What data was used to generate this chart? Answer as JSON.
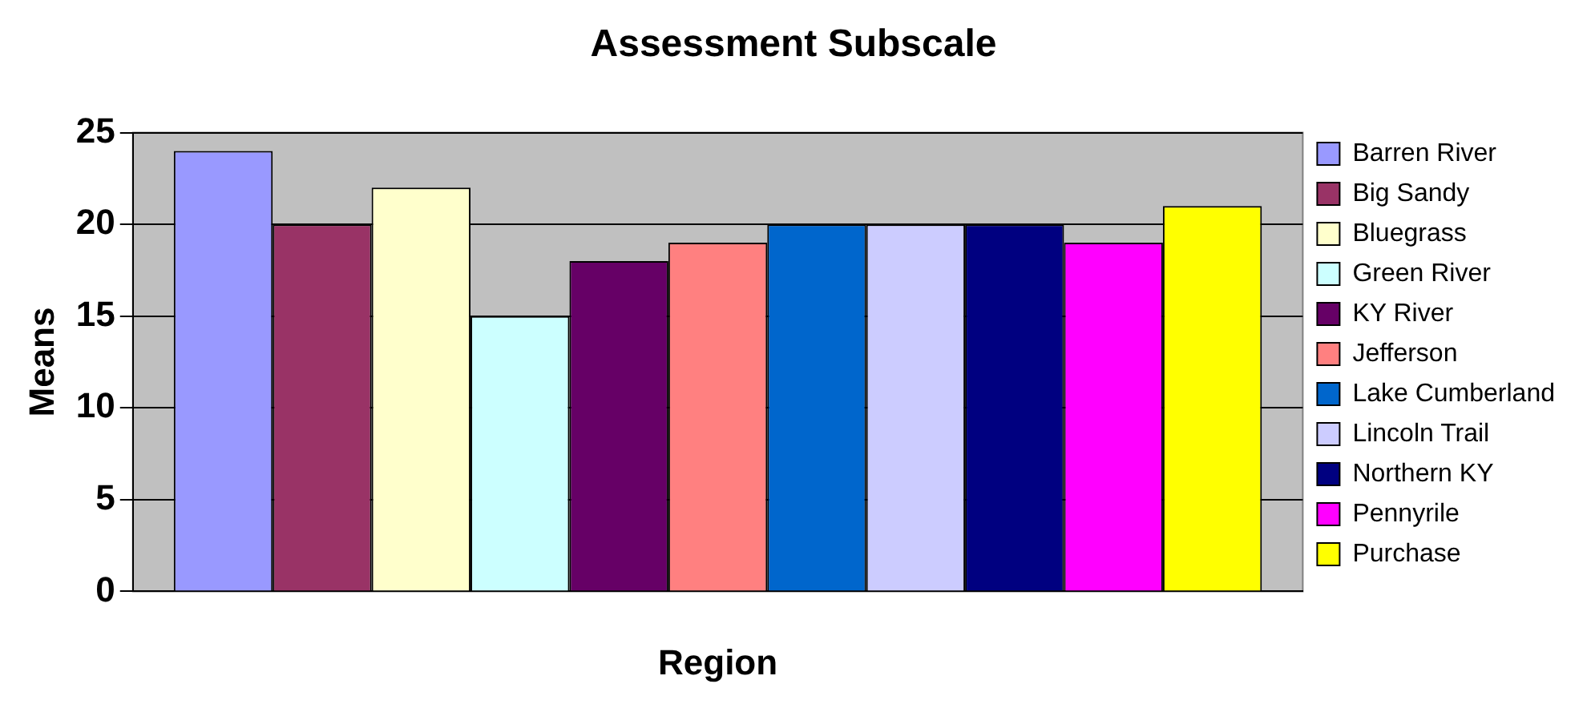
{
  "chart_data": {
    "type": "bar",
    "title": "Assessment Subscale",
    "xlabel": "Region",
    "ylabel": "Means",
    "categories": [
      null
    ],
    "series": [
      {
        "name": "Barren River",
        "color": "#9999ff",
        "values": [
          24
        ]
      },
      {
        "name": "Big Sandy",
        "color": "#993366",
        "values": [
          20
        ]
      },
      {
        "name": "Bluegrass",
        "color": "#ffffcc",
        "values": [
          22
        ]
      },
      {
        "name": "Green River",
        "color": "#ccffff",
        "values": [
          15
        ]
      },
      {
        "name": "KY River",
        "color": "#660066",
        "values": [
          18
        ]
      },
      {
        "name": "Jefferson",
        "color": "#ff8080",
        "values": [
          19
        ]
      },
      {
        "name": "Lake Cumberland",
        "color": "#0066cc",
        "values": [
          20
        ]
      },
      {
        "name": "Lincoln Trail",
        "color": "#ccccff",
        "values": [
          20
        ]
      },
      {
        "name": "Northern KY",
        "color": "#000080",
        "values": [
          20
        ]
      },
      {
        "name": "Pennyrile",
        "color": "#ff00ff",
        "values": [
          19
        ]
      },
      {
        "name": "Purchase",
        "color": "#ffff00",
        "values": [
          21
        ]
      }
    ],
    "ylim": [
      0,
      25
    ],
    "yticks": [
      0,
      5,
      10,
      15,
      20,
      25
    ],
    "grid": "y",
    "legend": "right"
  }
}
